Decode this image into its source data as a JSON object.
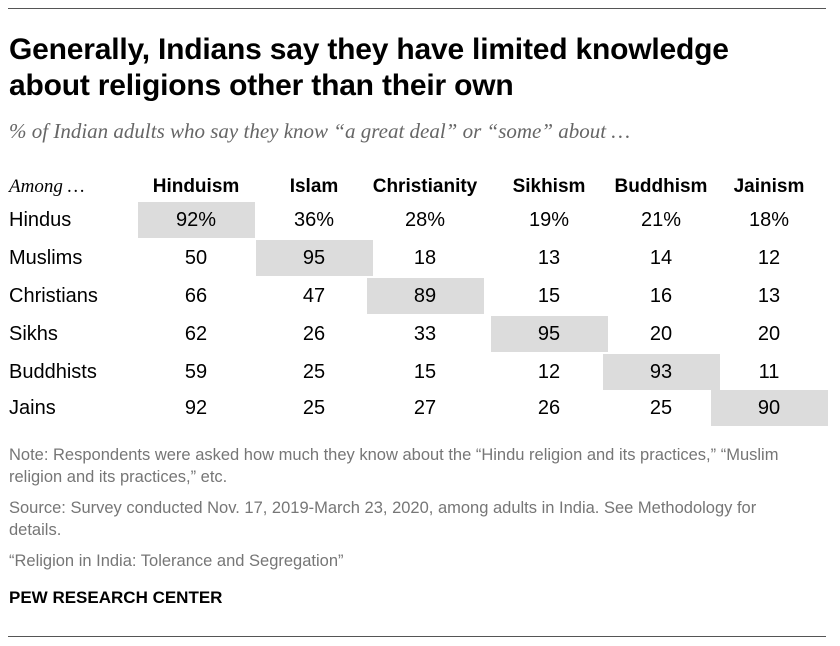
{
  "title": "Generally, Indians say they have limited knowledge about religions other than their own",
  "subtitle": "% of Indian adults who say they know “a great deal” or “some” about …",
  "chart_data": {
    "type": "table",
    "row_header": "Among …",
    "columns": [
      "Hinduism",
      "Islam",
      "Christianity",
      "Sikhism",
      "Buddhism",
      "Jainism"
    ],
    "rows": [
      {
        "label": "Hindus",
        "values": [
          "92%",
          "36%",
          "28%",
          "19%",
          "21%",
          "18%"
        ],
        "highlight": 0
      },
      {
        "label": "Muslims",
        "values": [
          "50",
          "95",
          "18",
          "13",
          "14",
          "12"
        ],
        "highlight": 1
      },
      {
        "label": "Christians",
        "values": [
          "66",
          "47",
          "89",
          "15",
          "16",
          "13"
        ],
        "highlight": 2
      },
      {
        "label": "Sikhs",
        "values": [
          "62",
          "26",
          "33",
          "95",
          "20",
          "20"
        ],
        "highlight": 3
      },
      {
        "label": "Buddhists",
        "values": [
          "59",
          "25",
          "15",
          "12",
          "93",
          "11"
        ],
        "highlight": 4
      },
      {
        "label": "Jains",
        "values": [
          "92",
          "25",
          "27",
          "26",
          "25",
          "90"
        ],
        "highlight": 5
      }
    ],
    "highlight_color": "#dcdcdc"
  },
  "footer": {
    "note": "Note: Respondents were asked how much they know about the “Hindu religion and its practices,” “Muslim religion and its practices,” etc.",
    "source": "Source: Survey conducted Nov. 17, 2019-March 23, 2020, among adults in India. See Methodology for details.",
    "report": "“Religion in India: Tolerance and Segregation”",
    "brand": "PEW RESEARCH CENTER"
  }
}
